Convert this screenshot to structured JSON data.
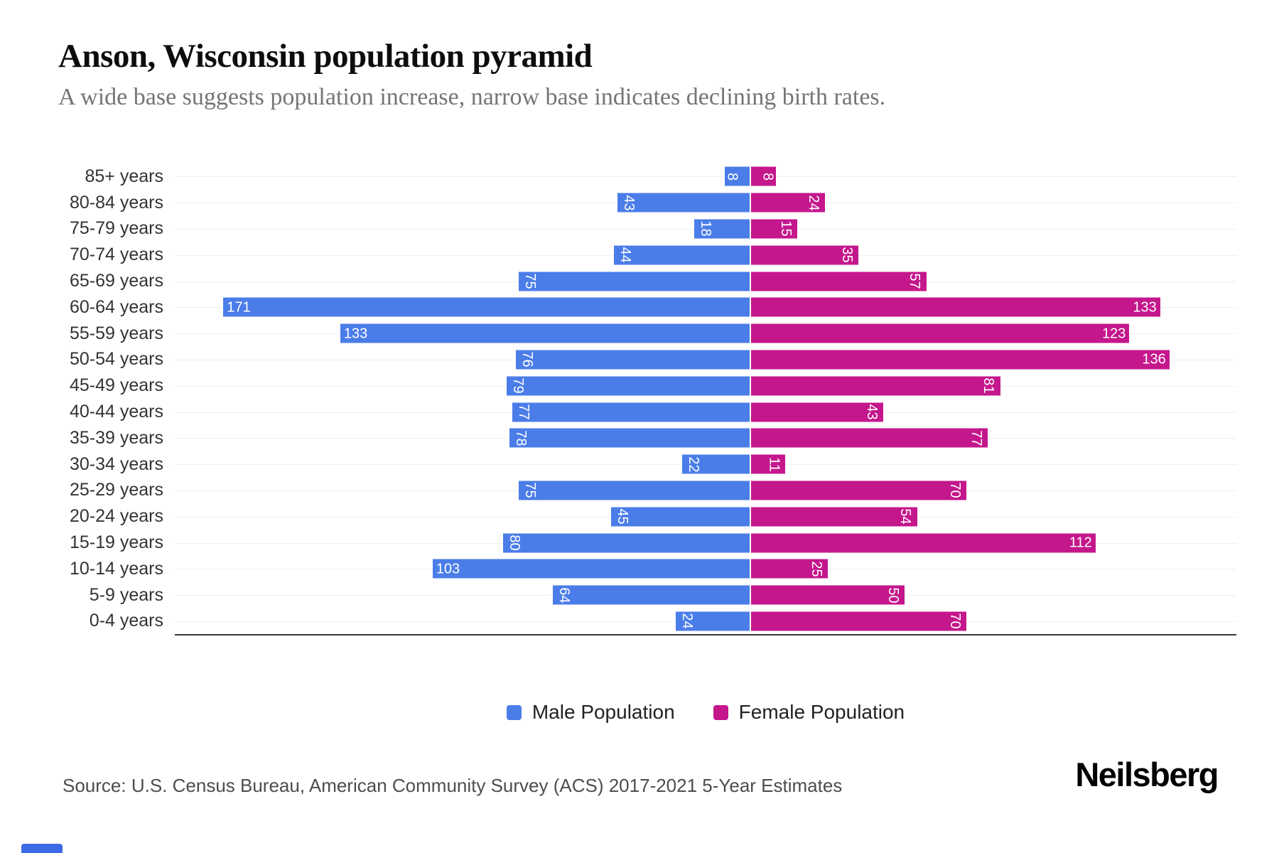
{
  "header": {
    "title": "Anson, Wisconsin population pyramid",
    "subtitle": "A wide base suggests population increase, narrow base indicates declining birth rates."
  },
  "chart_data": {
    "type": "bar",
    "variant": "population-pyramid-horizontal",
    "categories": [
      "85+ years",
      "80-84 years",
      "75-79 years",
      "70-74 years",
      "65-69 years",
      "60-64 years",
      "55-59 years",
      "50-54 years",
      "45-49 years",
      "40-44 years",
      "35-39 years",
      "30-34 years",
      "25-29 years",
      "20-24 years",
      "15-19 years",
      "10-14 years",
      "5-9 years",
      "0-4 years"
    ],
    "series": [
      {
        "name": "Male Population",
        "side": "left",
        "color": "#4B7DE9",
        "values": [
          8,
          43,
          18,
          44,
          75,
          171,
          133,
          76,
          79,
          77,
          78,
          22,
          75,
          45,
          80,
          103,
          64,
          24
        ]
      },
      {
        "name": "Female Population",
        "side": "right",
        "color": "#C4178C",
        "values": [
          8,
          24,
          15,
          35,
          57,
          133,
          123,
          136,
          81,
          43,
          77,
          11,
          70,
          54,
          112,
          25,
          50,
          70
        ]
      }
    ],
    "axis_max_male": 187,
    "axis_max_female": 158,
    "grid": true,
    "gridline_color": "#efefef",
    "baseline_color": "#333333",
    "legend_position": "bottom",
    "data_label_color": "#ffffff",
    "data_label_rotation_rule": "values below 100 rotated 90deg, 100+ horizontal"
  },
  "legend": {
    "items": [
      {
        "label": "Male Population",
        "color": "#4B7DE9"
      },
      {
        "label": "Female Population",
        "color": "#C4178C"
      }
    ]
  },
  "footer": {
    "source": "Source: U.S. Census Bureau, American Community Survey (ACS) 2017-2021 5-Year Estimates",
    "logo": "Neilsberg"
  },
  "floating_widget": {
    "color": "#3D6BE5"
  }
}
